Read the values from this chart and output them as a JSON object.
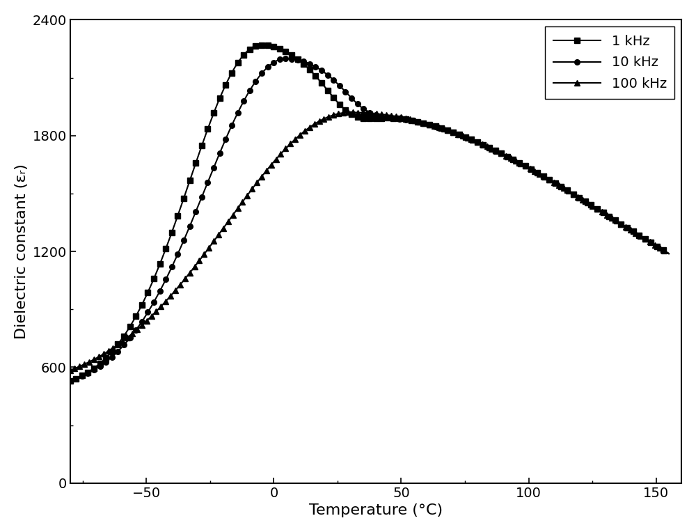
{
  "title": "",
  "xlabel": "Temperature (°C)",
  "ylabel": "Dielectric constant (εᵣ)",
  "xlim": [
    -80,
    160
  ],
  "ylim": [
    0,
    2400
  ],
  "xticks": [
    -50,
    0,
    50,
    100,
    150
  ],
  "yticks": [
    0,
    600,
    1200,
    1800,
    2400
  ],
  "legend_labels": [
    "1 kHz",
    "10 kHz",
    "100 kHz"
  ],
  "line_color": "#000000",
  "background_color": "#ffffff"
}
